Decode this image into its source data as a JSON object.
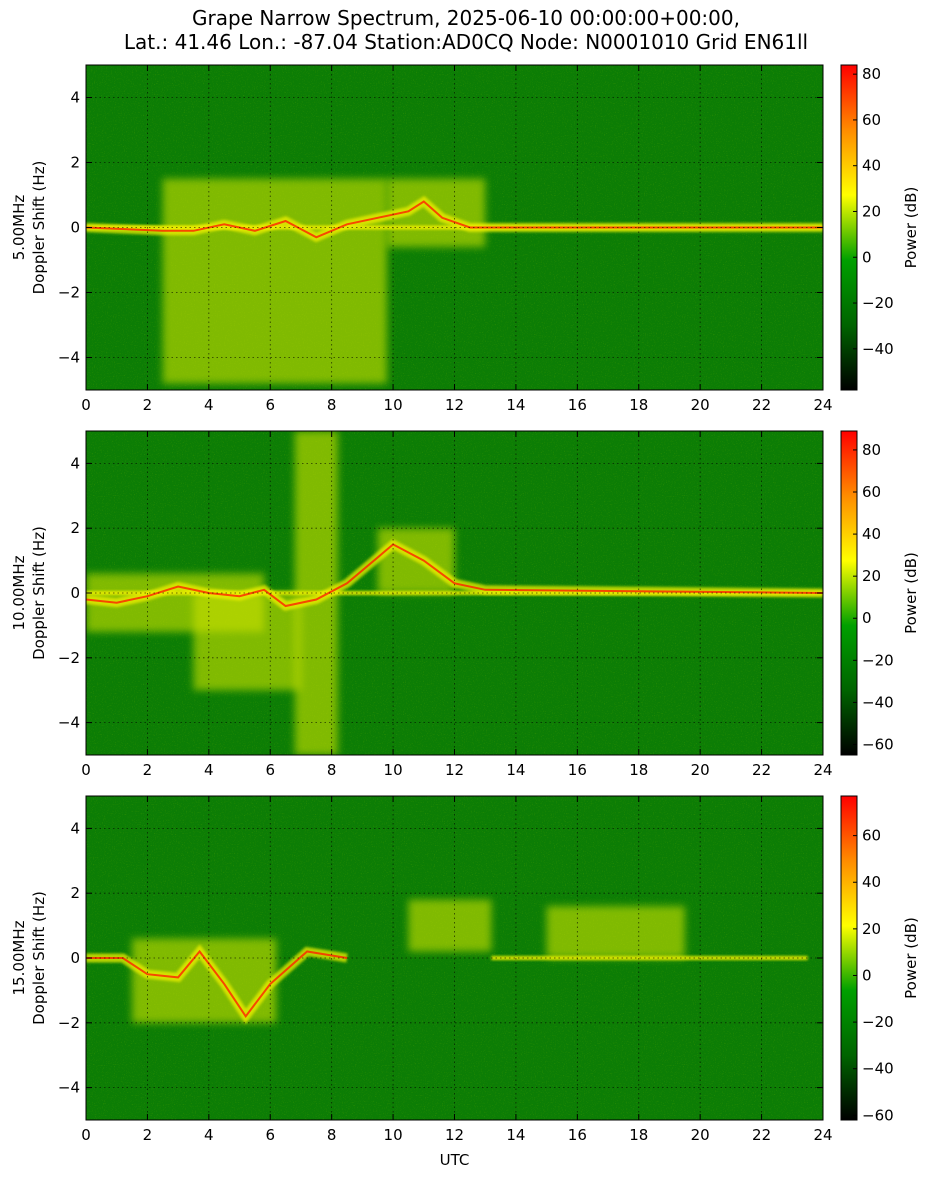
{
  "title": {
    "line1": "Grape Narrow Spectrum, 2025-06-10 00:00:00+00:00,",
    "line2": "Lat.: 41.46 Lon.: -87.04 Station:AD0CQ Node: N0001010 Grid EN61ll"
  },
  "colors": {
    "background_green": "#0c7d05",
    "signal_yellow": "#f0f000",
    "peak_red": "#ff2000",
    "colormap": [
      "#000000",
      "#006400",
      "#00a000",
      "#ffff00",
      "#ff8c00",
      "#ff0000"
    ]
  },
  "chart_data": [
    {
      "type": "heatmap",
      "ylabel_line1": "5.00MHz",
      "ylabel_line2": "Doppler Shift (Hz)",
      "xlabel": "",
      "xlim": [
        0,
        24
      ],
      "ylim": [
        -5,
        5
      ],
      "xticks": [
        "0",
        "2",
        "4",
        "6",
        "8",
        "10",
        "12",
        "14",
        "16",
        "18",
        "20",
        "22",
        "24"
      ],
      "yticks": [
        "−4",
        "−2",
        "0",
        "2",
        "4"
      ],
      "grid": true,
      "colorbar": {
        "label": "Power (dB)",
        "range": [
          -58,
          84
        ],
        "ticks": [
          "−40",
          "−20",
          "0",
          "20",
          "40",
          "60",
          "80"
        ]
      },
      "features": {
        "carrier": {
          "x_start": 0,
          "x_end": 24,
          "doppler": 0
        },
        "trace": [
          [
            0.0,
            0.0
          ],
          [
            2.5,
            -0.1
          ],
          [
            3.5,
            -0.1
          ],
          [
            4.5,
            0.1
          ],
          [
            5.5,
            -0.1
          ],
          [
            6.5,
            0.2
          ],
          [
            7.5,
            -0.3
          ],
          [
            8.5,
            0.1
          ],
          [
            9.5,
            0.3
          ],
          [
            10.5,
            0.5
          ],
          [
            11.0,
            0.8
          ],
          [
            11.6,
            0.3
          ],
          [
            12.5,
            0.0
          ],
          [
            24.0,
            0.0
          ]
        ],
        "spread_regions": [
          {
            "x_start": 2.5,
            "x_end": 9.8,
            "y_low": -4.8,
            "y_high": 1.5
          },
          {
            "x_start": 9.8,
            "x_end": 13.0,
            "y_low": -0.6,
            "y_high": 1.5
          }
        ]
      }
    },
    {
      "type": "heatmap",
      "ylabel_line1": "10.00MHz",
      "ylabel_line2": "Doppler Shift (Hz)",
      "xlabel": "",
      "xlim": [
        0,
        24
      ],
      "ylim": [
        -5,
        5
      ],
      "xticks": [
        "0",
        "2",
        "4",
        "6",
        "8",
        "10",
        "12",
        "14",
        "16",
        "18",
        "20",
        "22",
        "24"
      ],
      "yticks": [
        "−4",
        "−2",
        "0",
        "2",
        "4"
      ],
      "grid": true,
      "colorbar": {
        "label": "Power (dB)",
        "range": [
          -65,
          89
        ],
        "ticks": [
          "−60",
          "−40",
          "−20",
          "0",
          "20",
          "40",
          "60",
          "80"
        ]
      },
      "features": {
        "carrier": {
          "x_start": 0,
          "x_end": 24,
          "doppler": 0
        },
        "trace": [
          [
            0.0,
            -0.2
          ],
          [
            1.0,
            -0.3
          ],
          [
            2.0,
            -0.1
          ],
          [
            3.0,
            0.2
          ],
          [
            4.0,
            0.0
          ],
          [
            5.0,
            -0.1
          ],
          [
            5.8,
            0.1
          ],
          [
            6.5,
            -0.4
          ],
          [
            7.5,
            -0.2
          ],
          [
            8.5,
            0.3
          ],
          [
            10.0,
            1.5
          ],
          [
            11.0,
            1.0
          ],
          [
            12.0,
            0.3
          ],
          [
            13.0,
            0.1
          ],
          [
            24.0,
            0.0
          ]
        ],
        "spread_regions": [
          {
            "x_start": 0.0,
            "x_end": 5.8,
            "y_low": -1.2,
            "y_high": 0.6
          },
          {
            "x_start": 3.5,
            "x_end": 7.0,
            "y_low": -3.0,
            "y_high": 0.0
          },
          {
            "x_start": 6.8,
            "x_end": 8.2,
            "y_low": -5.0,
            "y_high": 5.0
          },
          {
            "x_start": 9.5,
            "x_end": 12.0,
            "y_low": 0.0,
            "y_high": 2.0
          }
        ]
      }
    },
    {
      "type": "heatmap",
      "ylabel_line1": "15.00MHz",
      "ylabel_line2": "Doppler Shift (Hz)",
      "xlabel": "UTC",
      "xlim": [
        0,
        24
      ],
      "ylim": [
        -5,
        5
      ],
      "xticks": [
        "0",
        "2",
        "4",
        "6",
        "8",
        "10",
        "12",
        "14",
        "16",
        "18",
        "20",
        "22",
        "24"
      ],
      "yticks": [
        "−4",
        "−2",
        "0",
        "2",
        "4"
      ],
      "grid": true,
      "colorbar": {
        "label": "Power (dB)",
        "range": [
          -62,
          77
        ],
        "ticks": [
          "−60",
          "−40",
          "−20",
          "0",
          "20",
          "40",
          "60"
        ]
      },
      "features": {
        "carrier": {
          "x_start": 13.2,
          "x_end": 23.5,
          "doppler": 0
        },
        "trace": [
          [
            0.0,
            0.0
          ],
          [
            1.2,
            0.0
          ],
          [
            2.0,
            -0.5
          ],
          [
            3.0,
            -0.6
          ],
          [
            3.7,
            0.2
          ],
          [
            4.5,
            -0.8
          ],
          [
            5.2,
            -1.8
          ],
          [
            6.0,
            -0.8
          ],
          [
            7.2,
            0.2
          ],
          [
            8.5,
            0.0
          ]
        ],
        "spread_regions": [
          {
            "x_start": 1.5,
            "x_end": 6.2,
            "y_low": -2.0,
            "y_high": 0.6
          },
          {
            "x_start": 10.5,
            "x_end": 13.2,
            "y_low": 0.2,
            "y_high": 1.8
          },
          {
            "x_start": 15.0,
            "x_end": 19.5,
            "y_low": 0.0,
            "y_high": 1.6
          }
        ]
      }
    }
  ]
}
